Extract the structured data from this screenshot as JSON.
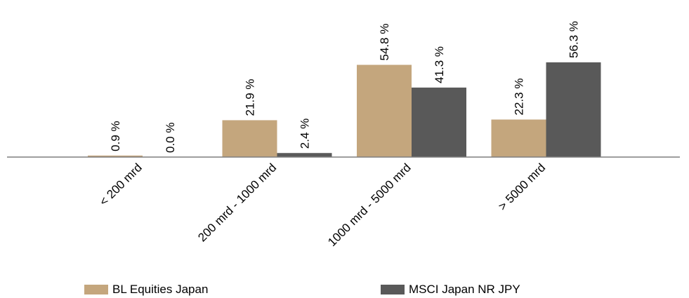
{
  "chart_data": {
    "type": "bar",
    "categories": [
      "< 200 mrd",
      "200 mrd - 1000 mrd",
      "1000 mrd - 5000 mrd",
      "> 5000 mrd"
    ],
    "series": [
      {
        "name": "BL Equities Japan",
        "values": [
          0.9,
          21.9,
          54.8,
          22.3
        ],
        "labels": [
          "0.9 %",
          "21.9 %",
          "54.8 %",
          "22.3 %"
        ],
        "color": "#c4a67d"
      },
      {
        "name": "MSCI Japan NR JPY",
        "values": [
          0.0,
          2.4,
          41.3,
          56.3
        ],
        "labels": [
          "0.0 %",
          "2.4 %",
          "41.3 %",
          "56.3 %"
        ],
        "color": "#595959"
      }
    ],
    "title": "",
    "xlabel": "",
    "ylabel": "",
    "ylim": [
      0,
      60
    ],
    "grid": false,
    "legend_position": "bottom"
  }
}
